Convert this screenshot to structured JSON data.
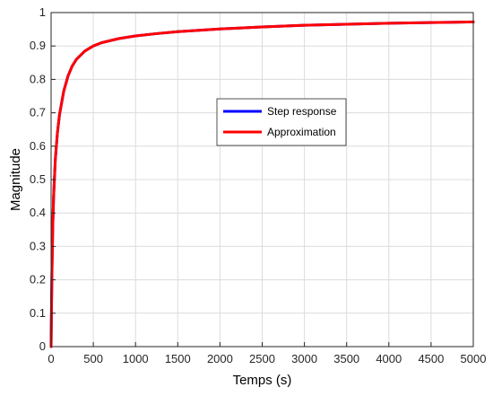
{
  "chart_data": {
    "type": "line",
    "title": "",
    "xlabel": "Temps (s)",
    "ylabel": "Magnitude",
    "xlim": [
      0,
      5000
    ],
    "ylim": [
      0,
      1
    ],
    "xticks": [
      0,
      500,
      1000,
      1500,
      2000,
      2500,
      3000,
      3500,
      4000,
      4500,
      5000
    ],
    "yticks": [
      0,
      0.1,
      0.2,
      0.3,
      0.4,
      0.5,
      0.6,
      0.7,
      0.8,
      0.9,
      1
    ],
    "grid": true,
    "legend_position": "center-right",
    "series": [
      {
        "name": "Step response",
        "color": "#0000ff",
        "x": [
          0,
          5,
          10,
          20,
          30,
          50,
          75,
          100,
          150,
          200,
          250,
          300,
          400,
          500,
          600,
          800,
          1000,
          1250,
          1500,
          2000,
          2500,
          3000,
          3500,
          4000,
          4500,
          5000
        ],
        "y": [
          0,
          0.12,
          0.22,
          0.36,
          0.45,
          0.56,
          0.64,
          0.695,
          0.765,
          0.81,
          0.84,
          0.86,
          0.885,
          0.9,
          0.91,
          0.922,
          0.93,
          0.937,
          0.943,
          0.951,
          0.957,
          0.962,
          0.965,
          0.968,
          0.97,
          0.972
        ]
      },
      {
        "name": "Approximation",
        "color": "#ff0000",
        "x": [
          0,
          5,
          10,
          20,
          30,
          50,
          75,
          100,
          150,
          200,
          250,
          300,
          400,
          500,
          600,
          800,
          1000,
          1250,
          1500,
          2000,
          2500,
          3000,
          3500,
          4000,
          4500,
          5000
        ],
        "y": [
          0,
          0.12,
          0.22,
          0.36,
          0.45,
          0.56,
          0.64,
          0.695,
          0.765,
          0.81,
          0.84,
          0.86,
          0.885,
          0.9,
          0.91,
          0.922,
          0.93,
          0.937,
          0.943,
          0.951,
          0.957,
          0.962,
          0.965,
          0.968,
          0.97,
          0.972
        ]
      }
    ]
  }
}
